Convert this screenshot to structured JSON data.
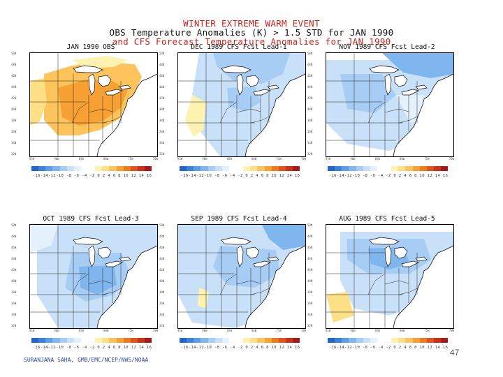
{
  "title": {
    "line1": "WINTER EXTREME WARM EVENT",
    "line2": "OBS Temperature Anomalies (K) > 1.5 STD for JAN 1990",
    "line3": "and CFS Forecast Temperature Anomalies for JAN 1990"
  },
  "colorbar_labels": "-16-14-12-10 -8 -6 -4 -2 0 2 4 6 8 10 12 14 16",
  "colorbar_colors": [
    "#2166c8",
    "#3b82d9",
    "#5b9de6",
    "#7fb6ee",
    "#a7cdf4",
    "#c9e1f8",
    "#e4f0fb",
    "#ffffff",
    "#ffffff",
    "#fdf2b0",
    "#fde085",
    "#fcc45a",
    "#f7a134",
    "#ef7a1e",
    "#e0541a",
    "#c8321a",
    "#a6191a"
  ],
  "panels": [
    {
      "id": "obs",
      "title": "JAN 1990 OBS",
      "field": "warm"
    },
    {
      "id": "lead1",
      "title": "DEC 1989 CFS Fcst Lead-1",
      "field": "cool1"
    },
    {
      "id": "lead2",
      "title": "NOV 1989 CFS Fcst Lead-2",
      "field": "cool2"
    },
    {
      "id": "lead3",
      "title": "OCT 1989 CFS Fcst Lead-3",
      "field": "cool3"
    },
    {
      "id": "lead4",
      "title": "SEP 1989 CFS Fcst Lead-4",
      "field": "cool4"
    },
    {
      "id": "lead5",
      "title": "AUG 1989 CFS Fcst Lead-5",
      "field": "cool5"
    }
  ],
  "credit": "SURANJANA SAHA, GMB/EMC/NCEP/NWS/NOAA",
  "page_number": "47"
}
